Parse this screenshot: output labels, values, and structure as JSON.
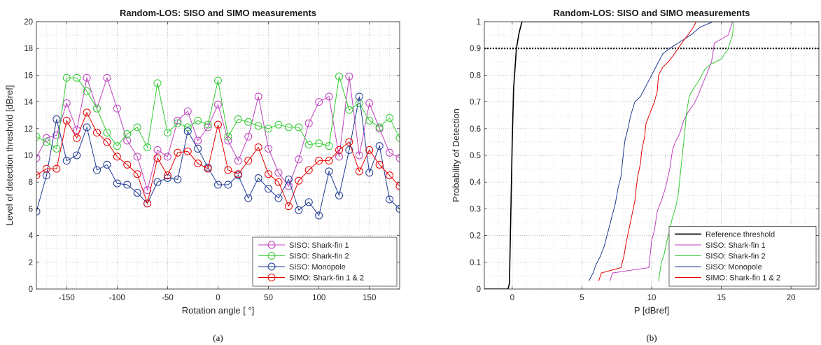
{
  "chart_data": [
    {
      "type": "line",
      "title": "Random-LOS: SISO and SIMO measurements",
      "xlabel": "Rotation angle [ °]",
      "ylabel": "Level of detection threshold [dBref]",
      "caption": "(a)",
      "xlim": [
        -180,
        180
      ],
      "ylim": [
        0,
        20
      ],
      "xticks": [
        -150,
        -100,
        -50,
        0,
        50,
        100,
        150
      ],
      "yticks": [
        0,
        2,
        4,
        6,
        8,
        10,
        12,
        14,
        16,
        18,
        20
      ],
      "grid": true,
      "legend_position": "bottom-right",
      "marker": "circle",
      "x": [
        -180,
        -170,
        -160,
        -150,
        -140,
        -130,
        -120,
        -110,
        -100,
        -90,
        -80,
        -70,
        -60,
        -50,
        -40,
        -30,
        -20,
        -10,
        0,
        10,
        20,
        30,
        40,
        50,
        60,
        70,
        80,
        90,
        100,
        110,
        120,
        130,
        140,
        150,
        160,
        170,
        180
      ],
      "series": [
        {
          "name": "SISO: Shark-fin 1",
          "color": "#bf40bf",
          "values": [
            9.8,
            11.3,
            11.5,
            13.9,
            11.9,
            15.8,
            13.5,
            15.8,
            13.5,
            11.1,
            9.9,
            7.4,
            10.4,
            9.9,
            12.6,
            13.3,
            11.1,
            12.1,
            13.8,
            11.1,
            9.6,
            11.4,
            14.4,
            10.5,
            8.7,
            7.7,
            9.7,
            12.4,
            14.0,
            14.4,
            9.9,
            15.9,
            10.0,
            13.9,
            12.0,
            10.2,
            9.8
          ]
        },
        {
          "name": "SISO: Shark-fin 2",
          "color": "#33cc33",
          "values": [
            11.4,
            11.0,
            10.5,
            15.8,
            15.8,
            14.8,
            13.5,
            11.7,
            10.7,
            11.6,
            12.1,
            10.6,
            15.4,
            11.7,
            12.4,
            12.1,
            12.6,
            12.3,
            15.6,
            11.4,
            12.7,
            12.5,
            12.2,
            12.0,
            12.3,
            12.1,
            12.1,
            10.8,
            10.9,
            10.7,
            15.9,
            13.4,
            13.9,
            12.6,
            12.1,
            12.8,
            11.3
          ]
        },
        {
          "name": "SISO: Monopole",
          "color": "#1f3a93",
          "values": [
            5.8,
            8.5,
            12.7,
            9.6,
            10.0,
            12.1,
            8.9,
            9.3,
            7.9,
            7.8,
            7.2,
            6.4,
            8.0,
            8.3,
            8.2,
            11.8,
            10.5,
            9.1,
            7.8,
            7.8,
            8.5,
            6.8,
            8.3,
            7.5,
            6.8,
            8.2,
            5.9,
            6.5,
            5.5,
            8.8,
            7.0,
            10.4,
            14.4,
            8.7,
            10.7,
            6.7,
            6.0
          ]
        },
        {
          "name": "SIMO: Shark-fin 1 & 2",
          "color": "#e60000",
          "values": [
            8.5,
            9.0,
            9.0,
            12.6,
            11.3,
            13.2,
            11.7,
            11.0,
            9.9,
            9.3,
            8.6,
            6.4,
            9.8,
            8.5,
            10.2,
            10.3,
            9.4,
            9.0,
            12.3,
            8.9,
            8.6,
            9.6,
            10.6,
            8.6,
            8.0,
            6.2,
            8.1,
            8.9,
            9.6,
            9.6,
            10.4,
            11.0,
            8.8,
            10.4,
            9.3,
            8.5,
            7.7
          ]
        }
      ]
    },
    {
      "type": "line",
      "title": "Random-LOS: SISO and SIMO measurements",
      "xlabel": "P [dBref]",
      "ylabel": "Probability of Detection",
      "caption": "(b)",
      "xlim": [
        -2,
        22
      ],
      "ylim": [
        0,
        1
      ],
      "xticks": [
        0,
        5,
        10,
        15,
        20
      ],
      "yticks": [
        0,
        0.1,
        0.2,
        0.3,
        0.4,
        0.5,
        0.6,
        0.7,
        0.8,
        0.9,
        1
      ],
      "ytick_labels": [
        "0",
        "0.1",
        "0.2",
        "0.3",
        "0.4",
        "0.5",
        "0.6",
        "0.7",
        "0.8",
        "0.9",
        "1"
      ],
      "grid": true,
      "legend_position": "bottom-right",
      "reference_line": {
        "y": 0.9,
        "color": "#000000",
        "style": "dotted"
      },
      "series": [
        {
          "name": "Reference threshold",
          "color": "#000000",
          "points": [
            [
              -2,
              0
            ],
            [
              -0.3,
              0
            ],
            [
              -0.2,
              0.02
            ],
            [
              0,
              0.55
            ],
            [
              0.1,
              0.75
            ],
            [
              0.3,
              0.9
            ],
            [
              0.5,
              0.96
            ],
            [
              0.7,
              1.0
            ],
            [
              22,
              1.0
            ]
          ]
        },
        {
          "name": "SISO: Shark-fin 1",
          "color": "#bf40bf",
          "points": [
            [
              7.0,
              0.03
            ],
            [
              7.2,
              0.06
            ],
            [
              9.8,
              0.08
            ],
            [
              10.0,
              0.18
            ],
            [
              10.2,
              0.22
            ],
            [
              10.4,
              0.29
            ],
            [
              10.7,
              0.33
            ],
            [
              11.0,
              0.38
            ],
            [
              11.3,
              0.45
            ],
            [
              11.5,
              0.52
            ],
            [
              11.7,
              0.55
            ],
            [
              12.0,
              0.58
            ],
            [
              12.3,
              0.63
            ],
            [
              12.6,
              0.66
            ],
            [
              13.0,
              0.69
            ],
            [
              13.3,
              0.72
            ],
            [
              13.6,
              0.76
            ],
            [
              14.0,
              0.81
            ],
            [
              14.3,
              0.85
            ],
            [
              14.5,
              0.92
            ],
            [
              15.5,
              0.95
            ],
            [
              15.8,
              1.0
            ]
          ]
        },
        {
          "name": "SISO: Shark-fin 2",
          "color": "#33cc33",
          "points": [
            [
              10.5,
              0.03
            ],
            [
              10.7,
              0.1
            ],
            [
              10.9,
              0.13
            ],
            [
              11.1,
              0.18
            ],
            [
              11.3,
              0.22
            ],
            [
              11.5,
              0.27
            ],
            [
              11.7,
              0.3
            ],
            [
              11.9,
              0.35
            ],
            [
              12.0,
              0.4
            ],
            [
              12.1,
              0.45
            ],
            [
              12.2,
              0.5
            ],
            [
              12.3,
              0.55
            ],
            [
              12.4,
              0.6
            ],
            [
              12.5,
              0.66
            ],
            [
              12.7,
              0.72
            ],
            [
              13.0,
              0.75
            ],
            [
              13.4,
              0.78
            ],
            [
              13.8,
              0.82
            ],
            [
              14.2,
              0.84
            ],
            [
              15.0,
              0.86
            ],
            [
              15.5,
              0.9
            ],
            [
              15.8,
              0.95
            ],
            [
              15.9,
              1.0
            ]
          ]
        },
        {
          "name": "SISO: Monopole",
          "color": "#1f3a93",
          "points": [
            [
              5.5,
              0.03
            ],
            [
              5.8,
              0.06
            ],
            [
              6.0,
              0.09
            ],
            [
              6.3,
              0.12
            ],
            [
              6.6,
              0.16
            ],
            [
              6.8,
              0.2
            ],
            [
              7.0,
              0.24
            ],
            [
              7.2,
              0.28
            ],
            [
              7.4,
              0.32
            ],
            [
              7.6,
              0.38
            ],
            [
              7.8,
              0.42
            ],
            [
              7.9,
              0.47
            ],
            [
              8.0,
              0.52
            ],
            [
              8.1,
              0.56
            ],
            [
              8.3,
              0.6
            ],
            [
              8.5,
              0.65
            ],
            [
              8.8,
              0.7
            ],
            [
              9.2,
              0.72
            ],
            [
              9.6,
              0.76
            ],
            [
              10.0,
              0.8
            ],
            [
              10.4,
              0.84
            ],
            [
              10.8,
              0.88
            ],
            [
              11.3,
              0.9
            ],
            [
              12.2,
              0.93
            ],
            [
              12.8,
              0.95
            ],
            [
              13.5,
              0.98
            ],
            [
              14.4,
              1.0
            ]
          ]
        },
        {
          "name": "SIMO: Shark-fin 1 & 2",
          "color": "#e60000",
          "points": [
            [
              6.2,
              0.03
            ],
            [
              6.4,
              0.06
            ],
            [
              7.8,
              0.08
            ],
            [
              8.0,
              0.12
            ],
            [
              8.2,
              0.18
            ],
            [
              8.4,
              0.23
            ],
            [
              8.6,
              0.28
            ],
            [
              8.8,
              0.33
            ],
            [
              8.9,
              0.38
            ],
            [
              9.0,
              0.42
            ],
            [
              9.2,
              0.47
            ],
            [
              9.3,
              0.52
            ],
            [
              9.5,
              0.57
            ],
            [
              9.6,
              0.62
            ],
            [
              9.9,
              0.66
            ],
            [
              10.2,
              0.7
            ],
            [
              10.4,
              0.74
            ],
            [
              10.5,
              0.8
            ],
            [
              10.8,
              0.83
            ],
            [
              11.2,
              0.85
            ],
            [
              11.5,
              0.87
            ],
            [
              11.9,
              0.9
            ],
            [
              12.3,
              0.93
            ],
            [
              12.6,
              0.95
            ],
            [
              13.0,
              0.98
            ],
            [
              13.2,
              1.0
            ]
          ]
        }
      ]
    }
  ]
}
